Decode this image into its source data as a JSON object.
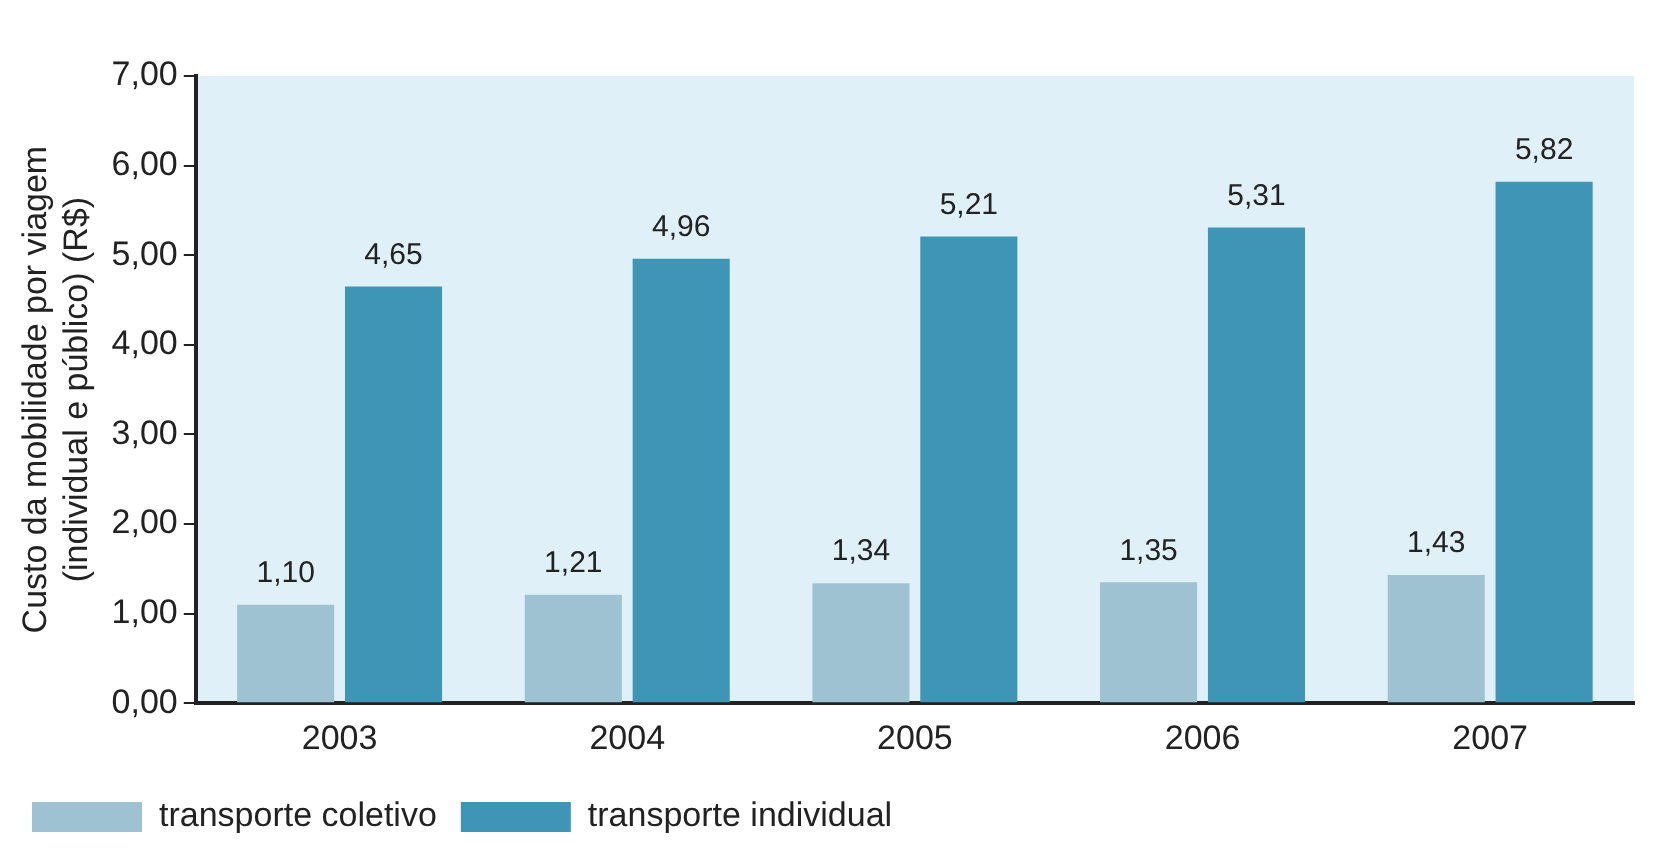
{
  "chart_data": {
    "type": "bar",
    "ylabel": "Custo da mobilidade por viagem\n(individual e público) (R$)",
    "categories": [
      "2003",
      "2004",
      "2005",
      "2006",
      "2007"
    ],
    "series": [
      {
        "name": "transporte coletivo",
        "color": "#9fc2d3",
        "values": [
          1.1,
          1.21,
          1.34,
          1.35,
          1.43
        ],
        "value_labels": [
          "1,10",
          "1,21",
          "1,34",
          "1,35",
          "1,43"
        ]
      },
      {
        "name": "transporte individual",
        "color": "#3f95b6",
        "values": [
          4.65,
          4.96,
          5.21,
          5.31,
          5.82
        ],
        "value_labels": [
          "4,65",
          "4,96",
          "5,21",
          "5,31",
          "5,82"
        ]
      }
    ],
    "ylim": [
      0,
      7
    ],
    "yticks": [
      {
        "value": 0,
        "label": "0,00"
      },
      {
        "value": 1,
        "label": "1,00"
      },
      {
        "value": 2,
        "label": "2,00"
      },
      {
        "value": 3,
        "label": "3,00"
      },
      {
        "value": 4,
        "label": "4,00"
      },
      {
        "value": 5,
        "label": "5,00"
      },
      {
        "value": 6,
        "label": "6,00"
      },
      {
        "value": 7,
        "label": "7,00"
      }
    ],
    "grid": false,
    "legend": "bottom left"
  }
}
